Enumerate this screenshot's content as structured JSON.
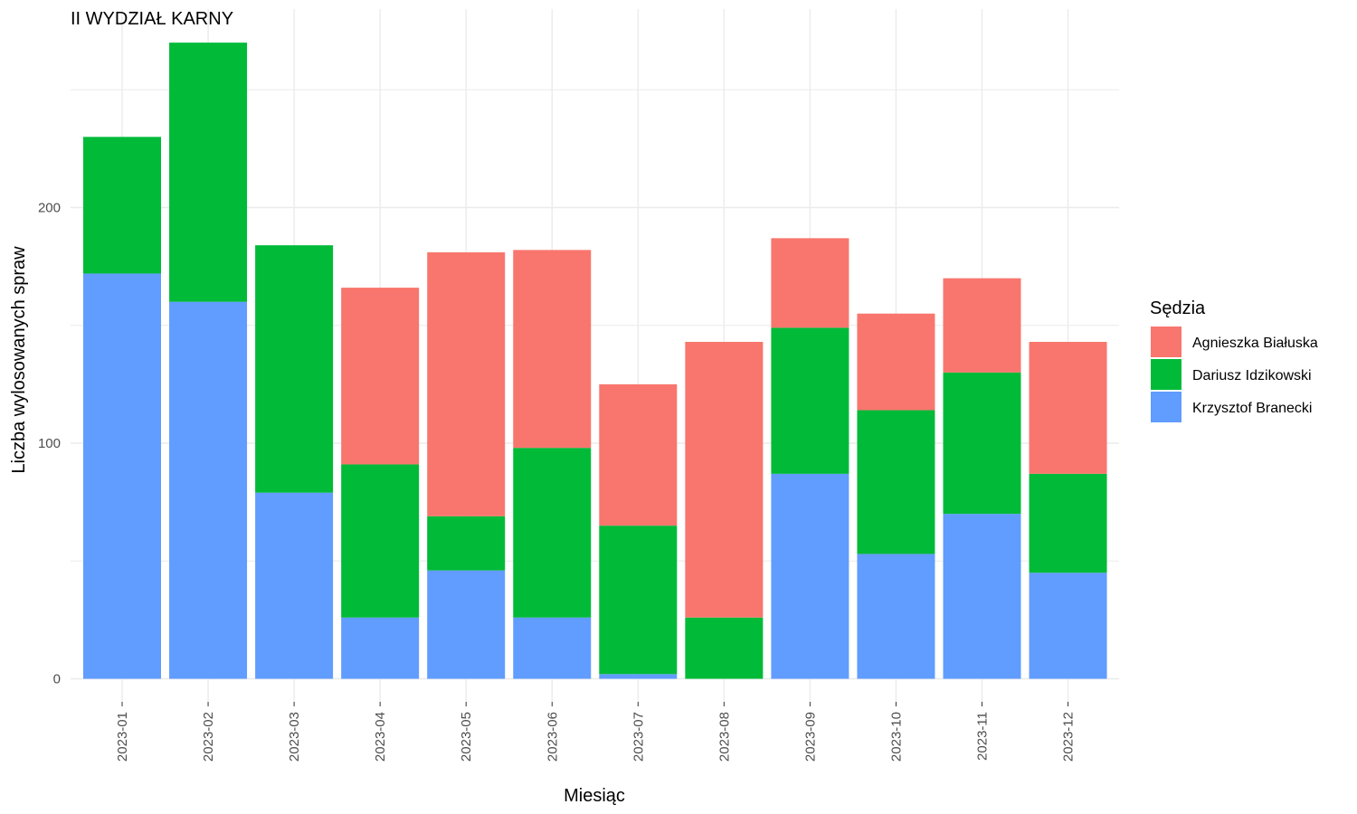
{
  "chart_data": {
    "type": "bar",
    "stacked": true,
    "title": "II WYDZIAŁ KARNY",
    "xlabel": "Miesiąc",
    "ylabel": "Liczba wylosowanych spraw",
    "ylim": [
      0,
      270
    ],
    "y_ticks": [
      0,
      100,
      200
    ],
    "grid": true,
    "legend_title": "Sędzia",
    "legend_position": "right",
    "categories": [
      "2023-01",
      "2023-02",
      "2023-03",
      "2023-04",
      "2023-05",
      "2023-06",
      "2023-07",
      "2023-08",
      "2023-09",
      "2023-10",
      "2023-11",
      "2023-12"
    ],
    "series": [
      {
        "name": "Krzysztof Branecki",
        "color": "#619CFF",
        "values": [
          172,
          160,
          79,
          26,
          46,
          26,
          2,
          0,
          87,
          53,
          70,
          45
        ]
      },
      {
        "name": "Dariusz Idzikowski",
        "color": "#00BA38",
        "values": [
          58,
          110,
          105,
          65,
          23,
          72,
          63,
          26,
          62,
          61,
          60,
          42
        ]
      },
      {
        "name": "Agnieszka Białuska",
        "color": "#F8766D",
        "values": [
          0,
          0,
          0,
          75,
          112,
          84,
          60,
          117,
          38,
          41,
          40,
          56
        ]
      }
    ],
    "legend_order": [
      "Agnieszka Białuska",
      "Dariusz Idzikowski",
      "Krzysztof Branecki"
    ]
  }
}
